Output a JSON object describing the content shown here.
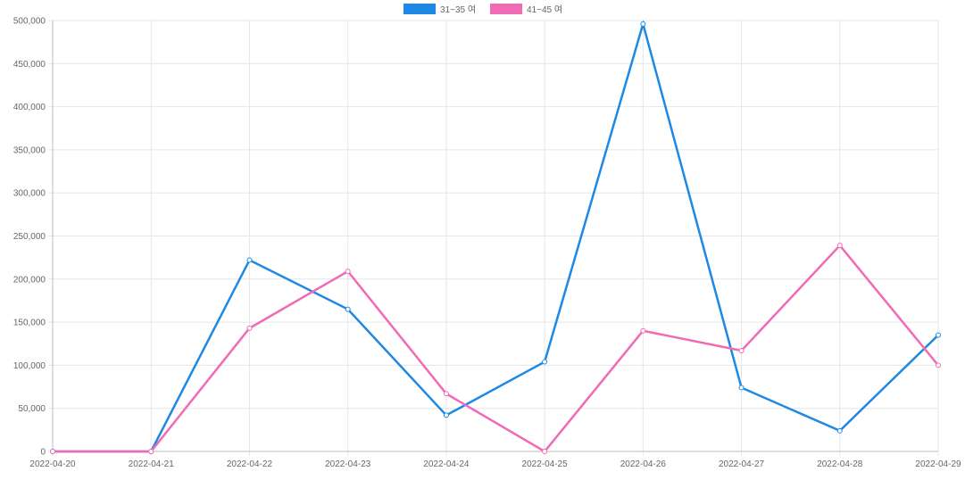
{
  "chart_data": {
    "type": "line",
    "title": "",
    "xlabel": "",
    "ylabel": "",
    "categories": [
      "2022-04-20",
      "2022-04-21",
      "2022-04-22",
      "2022-04-23",
      "2022-04-24",
      "2022-04-25",
      "2022-04-26",
      "2022-04-27",
      "2022-04-28",
      "2022-04-29"
    ],
    "ylim": [
      0,
      500000
    ],
    "yticks": [
      0,
      50000,
      100000,
      150000,
      200000,
      250000,
      300000,
      350000,
      400000,
      450000,
      500000
    ],
    "ytick_labels": [
      "0",
      "50,000",
      "100,000",
      "150,000",
      "200,000",
      "250,000",
      "300,000",
      "350,000",
      "400,000",
      "450,000",
      "500,000"
    ],
    "grid": true,
    "legend_position": "top-center",
    "series": [
      {
        "name": "31~35 여",
        "color": "#1e88e5",
        "values": [
          0,
          0,
          222000,
          165000,
          42000,
          104000,
          496000,
          74000,
          24000,
          135000
        ]
      },
      {
        "name": "41~45 여",
        "color": "#f06ab4",
        "values": [
          0,
          0,
          143000,
          209000,
          67000,
          0,
          140000,
          117000,
          239000,
          100000
        ]
      }
    ]
  }
}
